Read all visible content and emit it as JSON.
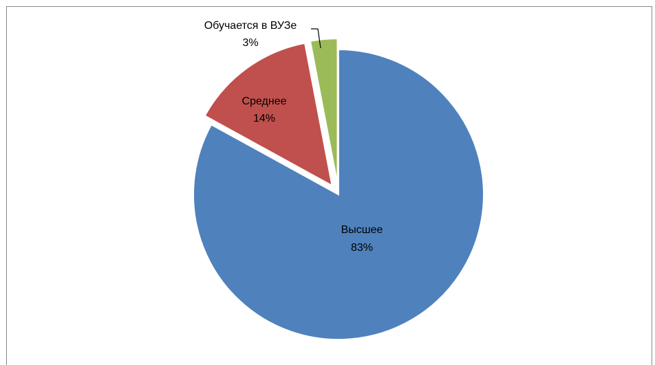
{
  "chart_data": {
    "type": "pie",
    "title": "",
    "legend": "none",
    "slices": [
      {
        "name": "Высшее",
        "value": 83,
        "label": "83%",
        "color": "#4f81bd",
        "exploded": false
      },
      {
        "name": "Среднее",
        "value": 14,
        "label": "14%",
        "color": "#c0504d",
        "exploded": true
      },
      {
        "name": "Обучается в ВУЗе",
        "value": 3,
        "label": "3%",
        "color": "#9bbb59",
        "exploded": true
      }
    ]
  },
  "colors": {
    "frame_border": "#868686",
    "background": "#ffffff",
    "leader_line": "#000000"
  }
}
